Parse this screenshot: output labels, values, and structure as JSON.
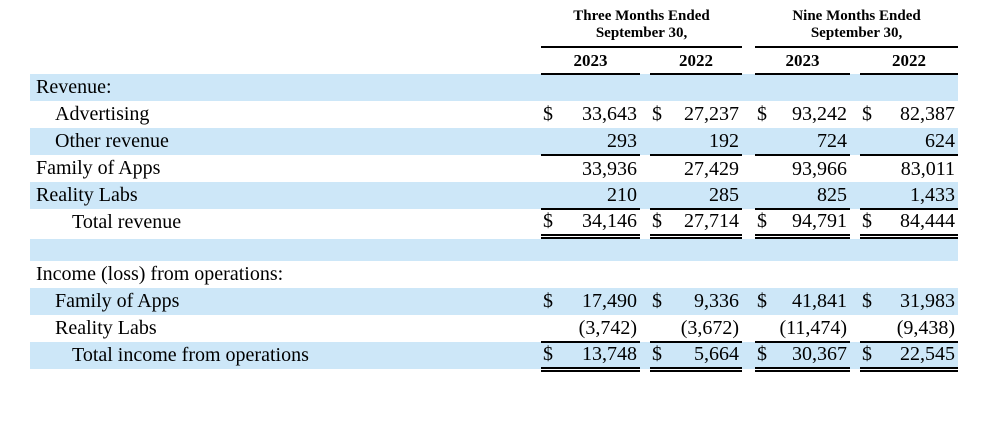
{
  "table": {
    "currency_symbol": "$",
    "shade_color": "#cde7f8",
    "headers": {
      "group_1": "Three Months Ended\nSeptember 30,",
      "group_2": "Nine Months Ended\nSeptember 30,",
      "years": [
        "2023",
        "2022",
        "2023",
        "2022"
      ]
    },
    "rows": [
      {
        "label": "Revenue:",
        "indent": 0,
        "shaded": true,
        "dollar": false,
        "values": [
          "",
          "",
          "",
          ""
        ]
      },
      {
        "label": "Advertising",
        "indent": 1,
        "shaded": false,
        "dollar": true,
        "values": [
          "33,643",
          "27,237",
          "93,242",
          "82,387"
        ]
      },
      {
        "label": "Other revenue",
        "indent": 1,
        "shaded": true,
        "dollar": false,
        "rule": "single",
        "values": [
          "293",
          "192",
          "724",
          "624"
        ]
      },
      {
        "label": "Family of Apps",
        "indent": 0,
        "shaded": false,
        "dollar": false,
        "values": [
          "33,936",
          "27,429",
          "93,966",
          "83,011"
        ]
      },
      {
        "label": "Reality Labs",
        "indent": 0,
        "shaded": true,
        "dollar": false,
        "rule": "single",
        "values": [
          "210",
          "285",
          "825",
          "1,433"
        ]
      },
      {
        "label": "Total revenue",
        "indent": 2,
        "shaded": false,
        "dollar": true,
        "rule": "double",
        "values": [
          "34,146",
          "27,714",
          "94,791",
          "84,444"
        ]
      },
      {
        "label": "",
        "indent": 0,
        "shaded": true,
        "spacer": true,
        "values": [
          "",
          "",
          "",
          ""
        ]
      },
      {
        "label": "Income (loss) from operations:",
        "indent": 0,
        "shaded": false,
        "dollar": false,
        "values": [
          "",
          "",
          "",
          ""
        ]
      },
      {
        "label": "Family of Apps",
        "indent": 1,
        "shaded": true,
        "dollar": true,
        "values": [
          "17,490",
          "9,336",
          "41,841",
          "31,983"
        ]
      },
      {
        "label": "Reality Labs",
        "indent": 1,
        "shaded": false,
        "dollar": false,
        "rule": "single",
        "values": [
          "(3,742)",
          "(3,672)",
          "(11,474)",
          "(9,438)"
        ]
      },
      {
        "label": "Total income from operations",
        "indent": 2,
        "shaded": true,
        "dollar": true,
        "rule": "double",
        "values": [
          "13,748",
          "5,664",
          "30,367",
          "22,545"
        ]
      }
    ]
  }
}
